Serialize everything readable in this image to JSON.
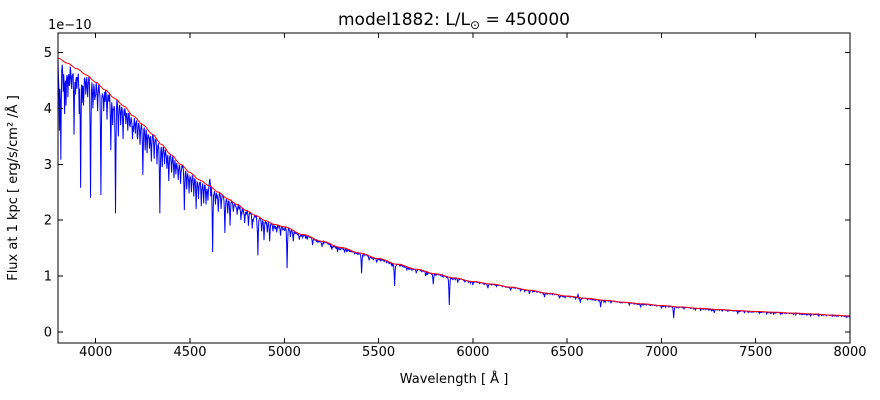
{
  "figure": {
    "title_prefix": "model1882: L/L",
    "title_sun_symbol": "⊙",
    "title_suffix": " = 450000",
    "offset_text": "1e−10",
    "background_color": "#ffffff",
    "frame_color": "#000000"
  },
  "chart_data": {
    "type": "line",
    "title": "model1882: L/L⊙ = 450000",
    "xlabel": "Wavelength [ Å ]",
    "ylabel": "Flux at 1 kpc [ erg/s/cm² /Å ]",
    "y_offset_text": "1e−10",
    "flux_units": "1e-10 erg/s/cm²/Å",
    "xlim": [
      3800,
      8000
    ],
    "ylim": [
      -0.2,
      5.35
    ],
    "x_ticks": [
      4000,
      4500,
      5000,
      5500,
      6000,
      6500,
      7000,
      7500,
      8000
    ],
    "y_ticks": [
      0,
      1,
      2,
      3,
      4,
      5
    ],
    "grid": false,
    "legend": null,
    "series": [
      {
        "name": "spectrum",
        "color": "#0000ff",
        "description": "synthetic spectrum with absorption lines"
      },
      {
        "name": "continuum fit",
        "color": "#ff0000",
        "description": "smooth continuum curve"
      }
    ],
    "continuum": [
      [
        3800,
        4.9
      ],
      [
        3850,
        4.81
      ],
      [
        3900,
        4.71
      ],
      [
        3950,
        4.6
      ],
      [
        4000,
        4.47
      ],
      [
        4050,
        4.33
      ],
      [
        4100,
        4.18
      ],
      [
        4150,
        4.04
      ],
      [
        4200,
        3.86
      ],
      [
        4250,
        3.71
      ],
      [
        4300,
        3.54
      ],
      [
        4350,
        3.35
      ],
      [
        4400,
        3.17
      ],
      [
        4450,
        3.0
      ],
      [
        4500,
        2.85
      ],
      [
        4550,
        2.72
      ],
      [
        4600,
        2.62
      ],
      [
        4650,
        2.5
      ],
      [
        4700,
        2.38
      ],
      [
        4750,
        2.28
      ],
      [
        4800,
        2.17
      ],
      [
        4850,
        2.08
      ],
      [
        4900,
        1.99
      ],
      [
        4950,
        1.92
      ],
      [
        5000,
        1.88
      ],
      [
        5100,
        1.74
      ],
      [
        5200,
        1.62
      ],
      [
        5300,
        1.51
      ],
      [
        5400,
        1.41
      ],
      [
        5500,
        1.31
      ],
      [
        5600,
        1.21
      ],
      [
        5700,
        1.12
      ],
      [
        5800,
        1.04
      ],
      [
        5900,
        0.965
      ],
      [
        6000,
        0.9
      ],
      [
        6100,
        0.855
      ],
      [
        6200,
        0.8
      ],
      [
        6300,
        0.745
      ],
      [
        6400,
        0.69
      ],
      [
        6500,
        0.64
      ],
      [
        6600,
        0.6
      ],
      [
        6700,
        0.565
      ],
      [
        6800,
        0.53
      ],
      [
        6900,
        0.5
      ],
      [
        7000,
        0.47
      ],
      [
        7100,
        0.445
      ],
      [
        7200,
        0.42
      ],
      [
        7300,
        0.4
      ],
      [
        7400,
        0.38
      ],
      [
        7500,
        0.365
      ],
      [
        7600,
        0.35
      ],
      [
        7700,
        0.335
      ],
      [
        7800,
        0.32
      ],
      [
        7900,
        0.3
      ],
      [
        8000,
        0.285
      ]
    ],
    "absorption_lines": [
      [
        3808,
        3.6
      ],
      [
        3814,
        3.08
      ],
      [
        3827,
        4.3
      ],
      [
        3835,
        3.9
      ],
      [
        3843,
        4.05
      ],
      [
        3852,
        4.2
      ],
      [
        3860,
        4.4
      ],
      [
        3872,
        4.35
      ],
      [
        3884,
        3.53
      ],
      [
        3892,
        4.25
      ],
      [
        3900,
        4.35
      ],
      [
        3912,
        3.9
      ],
      [
        3919,
        2.58
      ],
      [
        3928,
        4.1
      ],
      [
        3936,
        4.05
      ],
      [
        3948,
        4.25
      ],
      [
        3958,
        4.2
      ],
      [
        3972,
        2.4
      ],
      [
        3985,
        4.0
      ],
      [
        3995,
        4.15
      ],
      [
        4009,
        3.95
      ],
      [
        4028,
        2.45
      ],
      [
        4042,
        3.95
      ],
      [
        4060,
        3.8
      ],
      [
        4081,
        3.25
      ],
      [
        4090,
        3.7
      ],
      [
        4104,
        2.12
      ],
      [
        4121,
        3.5
      ],
      [
        4132,
        3.7
      ],
      [
        4144,
        3.45
      ],
      [
        4160,
        3.72
      ],
      [
        4170,
        3.6
      ],
      [
        4182,
        3.68
      ],
      [
        4196,
        3.45
      ],
      [
        4210,
        3.55
      ],
      [
        4222,
        3.45
      ],
      [
        4236,
        3.35
      ],
      [
        4250,
        2.81
      ],
      [
        4262,
        3.25
      ],
      [
        4272,
        3.2
      ],
      [
        4284,
        3.28
      ],
      [
        4296,
        3.05
      ],
      [
        4310,
        3.1
      ],
      [
        4326,
        3.0
      ],
      [
        4340,
        2.12
      ],
      [
        4352,
        2.95
      ],
      [
        4364,
        3.0
      ],
      [
        4378,
        2.92
      ],
      [
        4388,
        2.7
      ],
      [
        4402,
        2.85
      ],
      [
        4415,
        2.75
      ],
      [
        4426,
        2.82
      ],
      [
        4437,
        2.72
      ],
      [
        4450,
        2.65
      ],
      [
        4471,
        2.18
      ],
      [
        4482,
        2.55
      ],
      [
        4494,
        2.48
      ],
      [
        4508,
        2.5
      ],
      [
        4520,
        2.42
      ],
      [
        4532,
        2.2
      ],
      [
        4546,
        2.38
      ],
      [
        4560,
        2.25
      ],
      [
        4572,
        2.3
      ],
      [
        4584,
        2.28
      ],
      [
        4596,
        2.35
      ],
      [
        4620,
        1.43
      ],
      [
        4634,
        2.28
      ],
      [
        4650,
        2.15
      ],
      [
        4664,
        2.2
      ],
      [
        4686,
        1.77
      ],
      [
        4700,
        2.12
      ],
      [
        4713,
        1.9
      ],
      [
        4730,
        2.15
      ],
      [
        4750,
        2.1
      ],
      [
        4770,
        2.0
      ],
      [
        4790,
        1.95
      ],
      [
        4810,
        1.9
      ],
      [
        4830,
        1.85
      ],
      [
        4861,
        1.37
      ],
      [
        4880,
        1.8
      ],
      [
        4892,
        1.64
      ],
      [
        4910,
        1.78
      ],
      [
        4922,
        1.62
      ],
      [
        4940,
        1.8
      ],
      [
        4960,
        1.78
      ],
      [
        4980,
        1.72
      ],
      [
        5015,
        1.14
      ],
      [
        5032,
        1.7
      ],
      [
        5047,
        1.62
      ],
      [
        5080,
        1.65
      ],
      [
        5150,
        1.55
      ],
      [
        5200,
        1.52
      ],
      [
        5252,
        1.47
      ],
      [
        5320,
        1.42
      ],
      [
        5411,
        1.05
      ],
      [
        5450,
        1.28
      ],
      [
        5490,
        1.24
      ],
      [
        5585,
        0.82
      ],
      [
        5650,
        1.1
      ],
      [
        5700,
        1.05
      ],
      [
        5750,
        1.0
      ],
      [
        5791,
        0.85
      ],
      [
        5876,
        0.48
      ],
      [
        5920,
        0.88
      ],
      [
        6000,
        0.84
      ],
      [
        6080,
        0.78
      ],
      [
        6200,
        0.74
      ],
      [
        6300,
        0.68
      ],
      [
        6380,
        0.62
      ],
      [
        6460,
        0.6
      ],
      [
        6570,
        0.52
      ],
      [
        6678,
        0.44
      ],
      [
        6732,
        0.52
      ],
      [
        6830,
        0.48
      ],
      [
        6890,
        0.45
      ],
      [
        7000,
        0.43
      ],
      [
        7065,
        0.245
      ],
      [
        7120,
        0.41
      ],
      [
        7181,
        0.39
      ],
      [
        7281,
        0.34
      ],
      [
        7350,
        0.37
      ],
      [
        7404,
        0.33
      ],
      [
        7460,
        0.345
      ],
      [
        7520,
        0.33
      ],
      [
        7594,
        0.315
      ],
      [
        7640,
        0.32
      ],
      [
        7700,
        0.31
      ],
      [
        7770,
        0.3
      ],
      [
        7850,
        0.29
      ],
      [
        7930,
        0.28
      ]
    ],
    "emission_lines": [
      [
        4606,
        2.74
      ],
      [
        6558,
        0.67
      ]
    ],
    "noise": {
      "seed": 1234,
      "amp_at_3800": 0.55,
      "decay_scale_A": 550,
      "floor": 0.028
    }
  }
}
